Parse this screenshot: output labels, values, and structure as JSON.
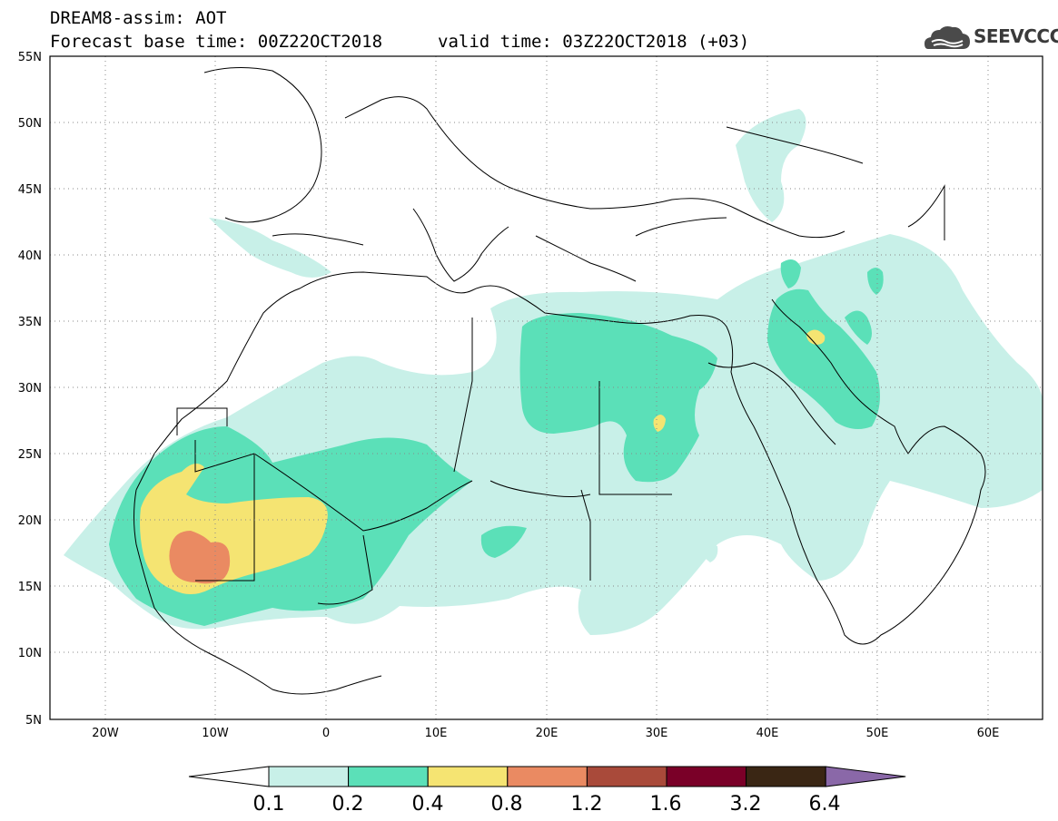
{
  "header": {
    "title": "DREAM8-assim: AOT",
    "base_time": "Forecast base time: 00Z22OCT2018",
    "valid_time": "valid time: 03Z22OCT2018 (+03)"
  },
  "logo": {
    "text": "SEEVCCC",
    "icon": "cloud-icon"
  },
  "map": {
    "lat_labels": [
      "55N",
      "50N",
      "45N",
      "40N",
      "35N",
      "30N",
      "25N",
      "20N",
      "15N",
      "10N",
      "5N"
    ],
    "lon_labels": [
      "20W",
      "10W",
      "0",
      "10E",
      "20E",
      "30E",
      "40E",
      "50E",
      "60E"
    ],
    "lon_range": [
      -25,
      65
    ],
    "lat_range": [
      5,
      55
    ],
    "field": "AOT"
  },
  "colorbar": {
    "levels": [
      "0.1",
      "0.2",
      "0.4",
      "0.8",
      "1.2",
      "1.6",
      "3.2",
      "6.4"
    ],
    "colors": [
      "#ffffff",
      "#c8f0e8",
      "#5be0b8",
      "#f5e472",
      "#ea8a62",
      "#a94a3a",
      "#7a0028",
      "#3a2614",
      "#8a68a8"
    ]
  }
}
